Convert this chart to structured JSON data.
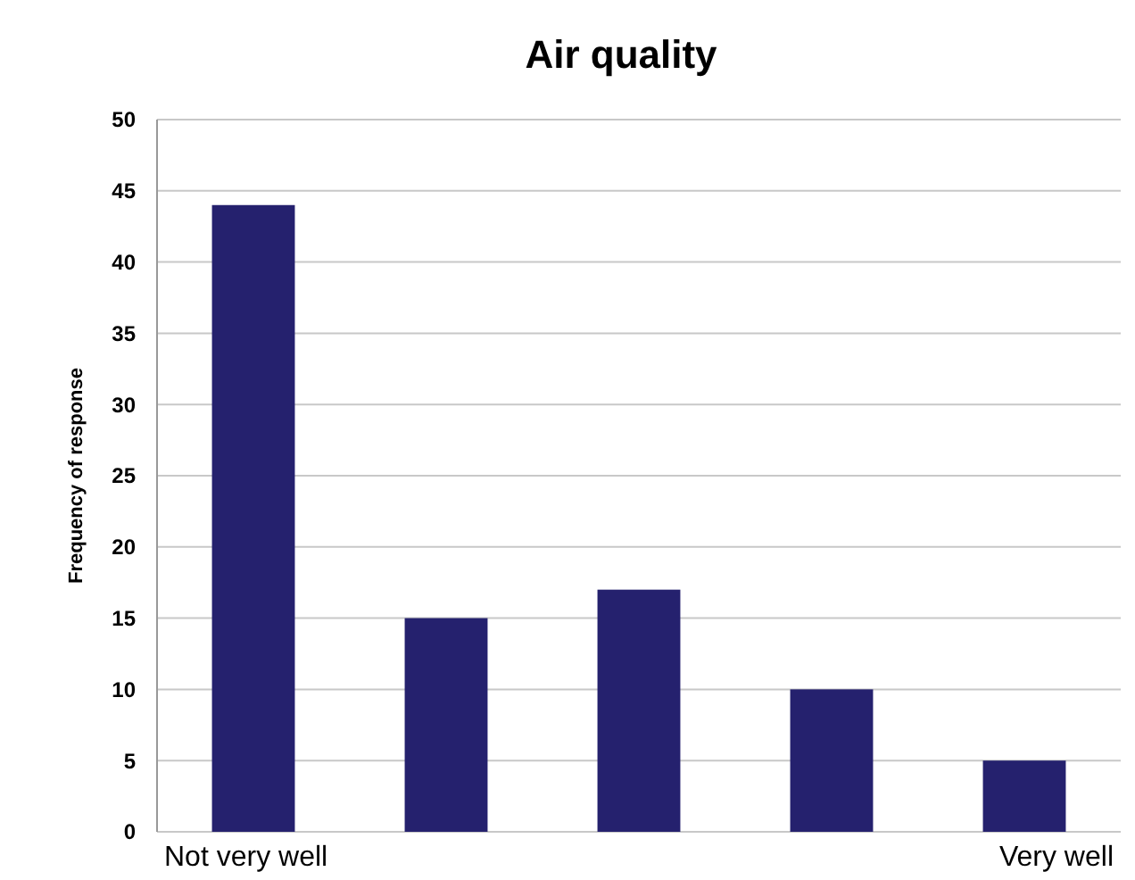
{
  "chart_data": {
    "type": "bar",
    "title": "Air quality",
    "ylabel": "Frequency of response",
    "categories": [
      "Not very well",
      null,
      null,
      null,
      "Very well"
    ],
    "values": [
      44,
      15,
      17,
      10,
      5
    ],
    "color": "#25216e",
    "ylim": [
      0,
      50
    ],
    "yticks": [
      0,
      5,
      10,
      15,
      20,
      25,
      30,
      35,
      40,
      45,
      50
    ],
    "grid": "y"
  }
}
